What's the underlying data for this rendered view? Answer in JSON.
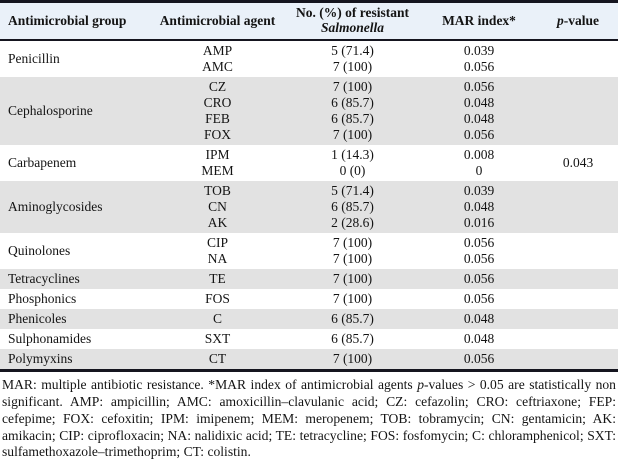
{
  "table": {
    "header": {
      "col_group": "Antimicrobial group",
      "col_agent": "Antimicrobial agent",
      "col_resistant_line1": "No. (%) of resistant",
      "col_resistant_line2": "Salmonella",
      "col_mar": "MAR index*",
      "col_pvalue_italic": "p",
      "col_pvalue_rest": "-value"
    },
    "groups": [
      {
        "group": "Penicillin",
        "p_value": "",
        "rows": [
          {
            "agent": "AMP",
            "resistant": "5 (71.4)",
            "mar": "0.039"
          },
          {
            "agent": "AMC",
            "resistant": "7 (100)",
            "mar": "0.056"
          }
        ]
      },
      {
        "group": "Cephalosporine",
        "p_value": "",
        "rows": [
          {
            "agent": "CZ",
            "resistant": "7 (100)",
            "mar": "0.056"
          },
          {
            "agent": "CRO",
            "resistant": "6 (85.7)",
            "mar": "0.048"
          },
          {
            "agent": "FEB",
            "resistant": "6 (85.7)",
            "mar": "0.048"
          },
          {
            "agent": "FOX",
            "resistant": "7 (100)",
            "mar": "0.056"
          }
        ]
      },
      {
        "group": "Carbapenem",
        "p_value": "0.043",
        "rows": [
          {
            "agent": "IPM",
            "resistant": "1 (14.3)",
            "mar": "0.008"
          },
          {
            "agent": "MEM",
            "resistant": "0 (0)",
            "mar": "0"
          }
        ]
      },
      {
        "group": "Aminoglycosides",
        "p_value": "",
        "rows": [
          {
            "agent": "TOB",
            "resistant": "5 (71.4)",
            "mar": "0.039"
          },
          {
            "agent": "CN",
            "resistant": "6 (85.7)",
            "mar": "0.048"
          },
          {
            "agent": "AK",
            "resistant": "2 (28.6)",
            "mar": "0.016"
          }
        ]
      },
      {
        "group": "Quinolones",
        "p_value": "",
        "rows": [
          {
            "agent": "CIP",
            "resistant": "7 (100)",
            "mar": "0.056"
          },
          {
            "agent": "NA",
            "resistant": "7 (100)",
            "mar": "0.056"
          }
        ]
      },
      {
        "group": "Tetracyclines",
        "p_value": "",
        "rows": [
          {
            "agent": "TE",
            "resistant": "7 (100)",
            "mar": "0.056"
          }
        ]
      },
      {
        "group": "Phosphonics",
        "p_value": "",
        "rows": [
          {
            "agent": "FOS",
            "resistant": "7 (100)",
            "mar": "0.056"
          }
        ]
      },
      {
        "group": "Phenicoles",
        "p_value": "",
        "rows": [
          {
            "agent": "C",
            "resistant": "6 (85.7)",
            "mar": "0.048"
          }
        ]
      },
      {
        "group": "Sulphonamides",
        "p_value": "",
        "rows": [
          {
            "agent": "SXT",
            "resistant": "6 (85.7)",
            "mar": "0.048"
          }
        ]
      },
      {
        "group": "Polymyxins",
        "p_value": "",
        "rows": [
          {
            "agent": "CT",
            "resistant": "7 (100)",
            "mar": "0.056"
          }
        ]
      }
    ]
  },
  "footnote": {
    "part1": "MAR: multiple antibiotic resistance. *MAR index of antimicrobial agents ",
    "italic_p": "p",
    "part2": "-values > 0.05 are statistically non significant. AMP: ampicillin; AMC: amoxicillin–clavulanic acid; CZ: cefazolin; CRO: ceftriaxone; FEP: cefepime; FOX: cefoxitin; IPM: imipenem; MEM: meropenem; TOB: tobramycin; CN: gentamicin; AK: amikacin; CIP: ciprofloxacin; NA: nalidixic acid; TE: tetracycline; FOS: fosfomycin; C: chloramphenicol; SXT: sulfamethoxazole–trimethoprim; CT: colistin."
  },
  "colors": {
    "border_dark": "#15151f",
    "header_bg": "#eaf1f9",
    "stripe_bg": "#e2e2e2",
    "text": "#141414"
  }
}
